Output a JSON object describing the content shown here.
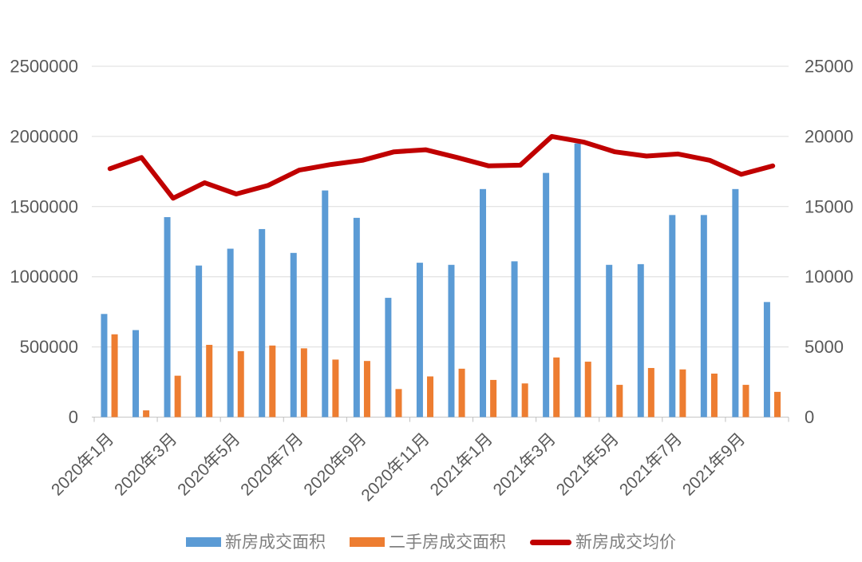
{
  "chart_data": {
    "type": "combo-bar-line",
    "title": "",
    "categories": [
      "2020年1月",
      "2020年2月",
      "2020年3月",
      "2020年4月",
      "2020年5月",
      "2020年6月",
      "2020年7月",
      "2020年8月",
      "2020年9月",
      "2020年10月",
      "2020年11月",
      "2020年12月",
      "2021年1月",
      "2021年2月",
      "2021年3月",
      "2021年4月",
      "2021年5月",
      "2021年6月",
      "2021年7月",
      "2021年8月",
      "2021年9月",
      "2021年10月"
    ],
    "x_tick_labels": [
      "2020年1月",
      "2020年3月",
      "2020年5月",
      "2020年7月",
      "2020年9月",
      "2020年11月",
      "2021年1月",
      "2021年3月",
      "2021年5月",
      "2021年7月",
      "2021年9月"
    ],
    "series": [
      {
        "name": "新房成交面积",
        "type": "bar",
        "axis": "left",
        "color": "#5B9BD5",
        "values": [
          735000,
          620000,
          1425000,
          1080000,
          1200000,
          1340000,
          1170000,
          1615000,
          1420000,
          850000,
          1100000,
          1085000,
          1625000,
          1110000,
          1740000,
          1950000,
          1085000,
          1090000,
          1440000,
          1440000,
          1625000,
          820000
        ]
      },
      {
        "name": "二手房成交面积",
        "type": "bar",
        "axis": "left",
        "color": "#ED7D31",
        "values": [
          590000,
          48000,
          295000,
          515000,
          470000,
          510000,
          490000,
          410000,
          400000,
          200000,
          290000,
          345000,
          265000,
          240000,
          425000,
          395000,
          230000,
          350000,
          340000,
          310000,
          230000,
          180000
        ]
      },
      {
        "name": "新房成交均价",
        "type": "line",
        "axis": "right",
        "color": "#C00000",
        "values": [
          17700,
          18500,
          15600,
          16700,
          15900,
          16500,
          17600,
          18000,
          18300,
          18900,
          19050,
          18500,
          17900,
          17950,
          20000,
          19600,
          18900,
          18600,
          18750,
          18300,
          17300,
          17900
        ]
      }
    ],
    "left_axis": {
      "min": 0,
      "max": 2500000,
      "step": 500000,
      "ticks": [
        "0",
        "500000",
        "1000000",
        "1500000",
        "2000000",
        "2500000"
      ]
    },
    "right_axis": {
      "min": 0,
      "max": 25000,
      "step": 5000,
      "ticks": [
        "0",
        "5000",
        "10000",
        "15000",
        "20000",
        "25000"
      ]
    },
    "grid": true,
    "legend_position": "bottom",
    "colors": {
      "gridline": "#DCDCDC",
      "axis_line": "#C6C6C6",
      "tick_mark": "#BFBFBF",
      "axis_label": "#595959",
      "legend_label": "#7f7f7f",
      "background": "#ffffff"
    }
  }
}
